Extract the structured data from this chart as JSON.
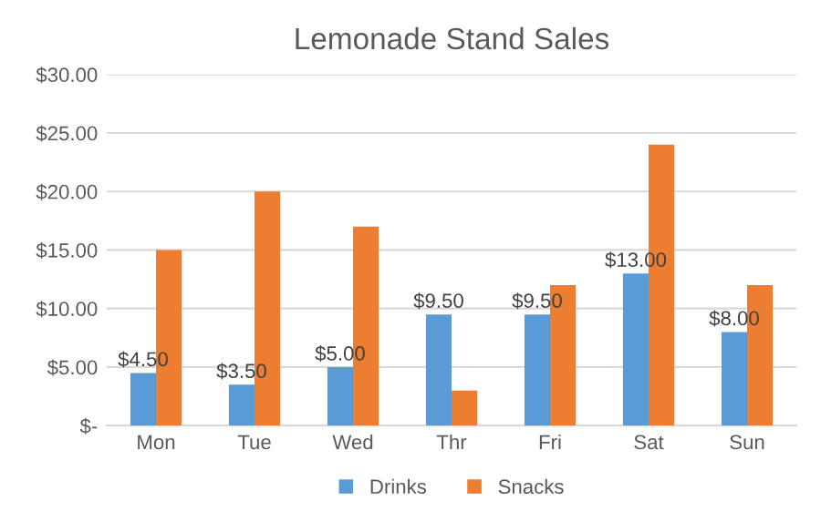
{
  "chart_data": {
    "type": "bar",
    "title": "Lemonade Stand Sales",
    "categories": [
      "Mon",
      "Tue",
      "Wed",
      "Thr",
      "Fri",
      "Sat",
      "Sun"
    ],
    "series": [
      {
        "name": "Drinks",
        "color": "#5b9bd5",
        "values": [
          4.5,
          3.5,
          5,
          9.5,
          9.5,
          13,
          8
        ],
        "value_labels": [
          "$4.50",
          "$3.50",
          "$5.00",
          "$9.50",
          "$9.50",
          "$13.00",
          "$8.00"
        ]
      },
      {
        "name": "Snacks",
        "color": "#ed7d31",
        "values": [
          15,
          20,
          17,
          3,
          12,
          24,
          12
        ]
      }
    ],
    "ylim": [
      0,
      30
    ],
    "yticks": [
      {
        "value": 0,
        "label": "$-"
      },
      {
        "value": 5,
        "label": "$5.00"
      },
      {
        "value": 10,
        "label": "$10.00"
      },
      {
        "value": 15,
        "label": "$15.00"
      },
      {
        "value": 20,
        "label": "$20.00"
      },
      {
        "value": 25,
        "label": "$25.00"
      },
      {
        "value": 30,
        "label": "$30.00"
      }
    ],
    "grid": "y",
    "legend": "bottom"
  }
}
